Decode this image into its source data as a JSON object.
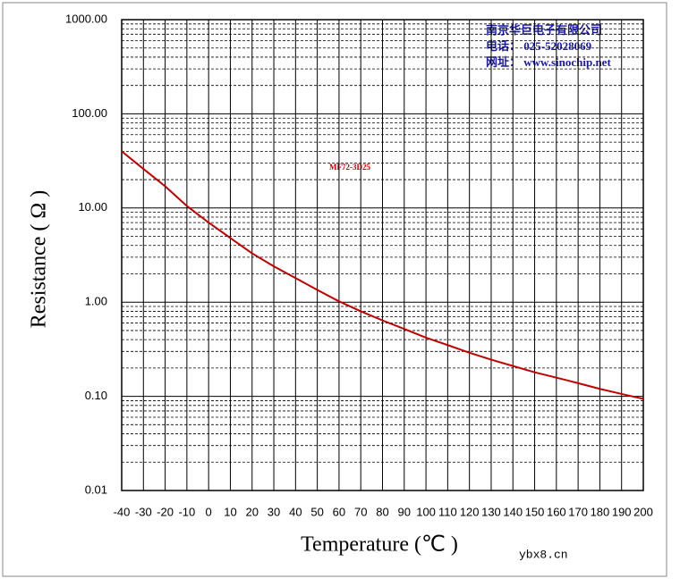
{
  "chart_data": {
    "type": "line",
    "x_label": "Temperature (℃ )",
    "y_label": "Resistance ( Ω )",
    "annotations": [
      "南京华巨电子有限公司",
      "电话： 025-52028069",
      "网址： www.sinochip.net"
    ],
    "watermark": "ybx8.cn",
    "log_y": true,
    "grid": true,
    "xlim": [
      -40,
      200
    ],
    "ylim": [
      0.01,
      1000
    ],
    "xticks": [
      -40,
      -30,
      -20,
      -10,
      0,
      10,
      20,
      30,
      40,
      50,
      60,
      70,
      80,
      90,
      100,
      110,
      120,
      130,
      140,
      150,
      160,
      170,
      180,
      190,
      200
    ],
    "yticks": [
      {
        "value": 0.01,
        "label": "0.01"
      },
      {
        "value": 0.1,
        "label": "0.10"
      },
      {
        "value": 1,
        "label": "1.00"
      },
      {
        "value": 10,
        "label": "10.00"
      },
      {
        "value": 100,
        "label": "100.00"
      },
      {
        "value": 1000,
        "label": "1000.00"
      }
    ],
    "x": [
      -40,
      -30,
      -20,
      -10,
      0,
      10,
      20,
      30,
      40,
      50,
      60,
      70,
      80,
      90,
      100,
      110,
      120,
      130,
      140,
      150,
      160,
      170,
      180,
      190,
      200
    ],
    "series": [
      {
        "name": "MF72-3D25",
        "color": "#c00000",
        "values": [
          40,
          26,
          17,
          10.5,
          7,
          4.8,
          3.3,
          2.4,
          1.8,
          1.35,
          1.02,
          0.8,
          0.64,
          0.52,
          0.42,
          0.35,
          0.29,
          0.245,
          0.21,
          0.18,
          0.158,
          0.138,
          0.12,
          0.106,
          0.094
        ]
      }
    ]
  }
}
